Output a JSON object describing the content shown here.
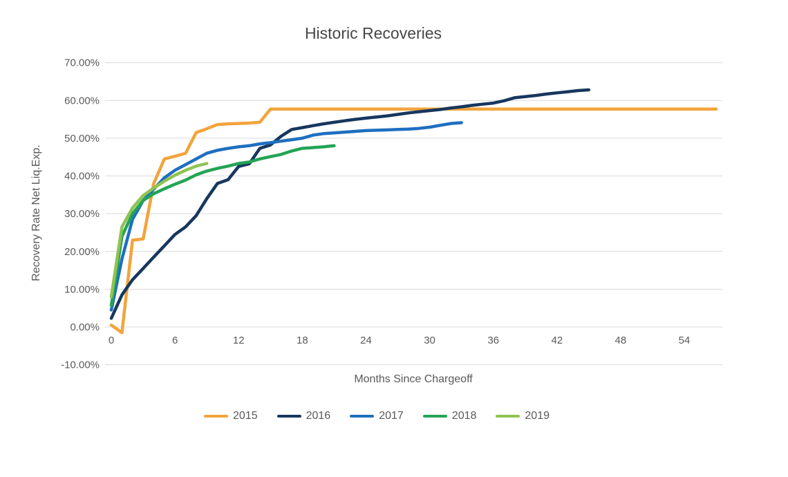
{
  "chart_data": {
    "type": "line",
    "title": "Historic Recoveries",
    "xlabel": "Months Since Chargeoff",
    "ylabel": "Recovery Rate Net Liq.Exp.",
    "x_unit": "month",
    "xlim": [
      0,
      57.5
    ],
    "ylim": [
      -10,
      70
    ],
    "xticks": [
      0,
      6,
      12,
      18,
      24,
      30,
      36,
      42,
      48,
      54
    ],
    "yticks": [
      70,
      60,
      50,
      40,
      30,
      20,
      10,
      0,
      -10
    ],
    "ytick_labels": [
      "70.00%",
      "60.00%",
      "50.00%",
      "40.00%",
      "30.00%",
      "20.00%",
      "10.00%",
      "0.00%",
      "-10.00%"
    ],
    "grid": "horizontal-only",
    "legend_position": "bottom",
    "text_color": "#595959",
    "gridline_color": "#d9d9d9",
    "series": [
      {
        "name": "2015",
        "color": "#F2A43C",
        "start_month": 0,
        "values_percent": [
          0.5,
          -1.5,
          23,
          23.3,
          38,
          44.5,
          45.2,
          46,
          51.5,
          52.5,
          53.6,
          53.8,
          53.9,
          54,
          54.2,
          57.7,
          57.7,
          57.7,
          57.7,
          57.7,
          57.7,
          57.7,
          57.7,
          57.7,
          57.7,
          57.7,
          57.7,
          57.7,
          57.7,
          57.7,
          57.7,
          57.7,
          57.7,
          57.7,
          57.7,
          57.7,
          57.7,
          57.7,
          57.7,
          57.7,
          57.7,
          57.7,
          57.7,
          57.7,
          57.7,
          57.7,
          57.7,
          57.7,
          57.7,
          57.7,
          57.7,
          57.7,
          57.7,
          57.7,
          57.7,
          57.7,
          57.7,
          57.7
        ]
      },
      {
        "name": "2016",
        "color": "#17375E",
        "start_month": 0,
        "values_percent": [
          2.3,
          8.5,
          12.5,
          15.5,
          18.5,
          21.5,
          24.5,
          26.5,
          29.5,
          34,
          38,
          39,
          42.5,
          43.2,
          47.3,
          48.2,
          50.5,
          52.3,
          52.8,
          53.3,
          53.8,
          54.2,
          54.6,
          55,
          55.3,
          55.6,
          55.9,
          56.3,
          56.7,
          57,
          57.3,
          57.6,
          58,
          58.3,
          58.7,
          59,
          59.3,
          59.9,
          60.7,
          61,
          61.3,
          61.7,
          62,
          62.3,
          62.6,
          62.8
        ]
      },
      {
        "name": "2017",
        "color": "#1E6FC0",
        "start_month": 0,
        "values_percent": [
          4.5,
          18,
          28.5,
          33.5,
          36.5,
          39.5,
          41.5,
          43,
          44.5,
          46,
          46.8,
          47.3,
          47.7,
          48,
          48.5,
          48.8,
          49.2,
          49.6,
          50,
          50.8,
          51.2,
          51.4,
          51.6,
          51.8,
          52,
          52.1,
          52.2,
          52.3,
          52.4,
          52.6,
          52.9,
          53.4,
          53.9,
          54.1
        ]
      },
      {
        "name": "2018",
        "color": "#23A455",
        "start_month": 0,
        "values_percent": [
          5.7,
          24,
          30,
          33.5,
          35.3,
          36.6,
          37.8,
          38.9,
          40.3,
          41.3,
          42,
          42.6,
          43.3,
          43.7,
          44.5,
          45.1,
          45.7,
          46.6,
          47.3,
          47.5,
          47.7,
          48
        ]
      },
      {
        "name": "2019",
        "color": "#90C353",
        "start_month": 0,
        "values_percent": [
          8,
          26.5,
          31.5,
          34.8,
          36.8,
          38.6,
          40.2,
          41.5,
          42.6,
          43.3
        ]
      }
    ]
  }
}
